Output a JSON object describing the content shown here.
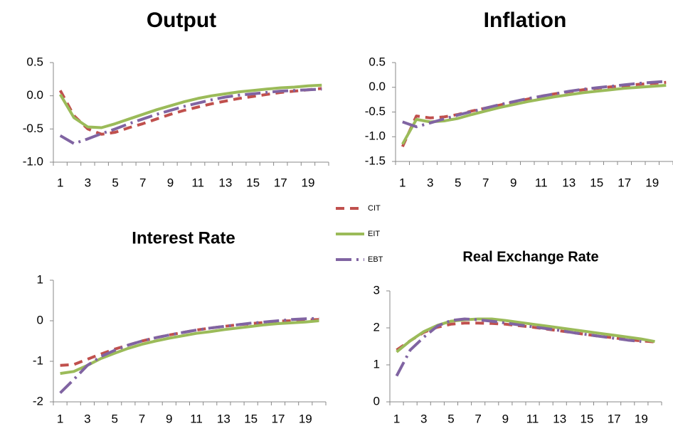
{
  "legend": [
    {
      "name": "CIT",
      "color": "#c0504d",
      "dash": "12,8"
    },
    {
      "name": "EIT",
      "color": "#9bbb59",
      "dash": "none"
    },
    {
      "name": "EBT",
      "color": "#8064a2",
      "dash": "22,7,3,7"
    }
  ],
  "chart_data": [
    {
      "type": "line",
      "title": "Output",
      "categories": [
        1,
        null,
        3,
        null,
        5,
        null,
        7,
        null,
        9,
        null,
        11,
        null,
        13,
        null,
        15,
        null,
        17,
        null,
        19,
        null
      ],
      "series": [
        {
          "values": [
            0.08,
            -0.3,
            -0.5,
            -0.58,
            -0.55,
            -0.48,
            -0.42,
            -0.35,
            -0.28,
            -0.22,
            -0.17,
            -0.12,
            -0.08,
            -0.04,
            -0.01,
            0.02,
            0.05,
            0.07,
            0.09,
            0.11
          ]
        },
        {
          "values": [
            0.02,
            -0.33,
            -0.47,
            -0.48,
            -0.42,
            -0.35,
            -0.28,
            -0.21,
            -0.15,
            -0.09,
            -0.04,
            0.0,
            0.03,
            0.06,
            0.08,
            0.1,
            0.12,
            0.13,
            0.15,
            0.16
          ]
        },
        {
          "values": [
            -0.6,
            -0.72,
            -0.65,
            -0.57,
            -0.5,
            -0.42,
            -0.35,
            -0.28,
            -0.22,
            -0.16,
            -0.11,
            -0.06,
            -0.02,
            0.01,
            0.03,
            0.05,
            0.07,
            0.08,
            0.09,
            0.1
          ]
        }
      ],
      "ylim": [
        -1.0,
        0.5
      ],
      "yticks": [
        0.5,
        {
          "value": 0,
          "label": "0.0"
        },
        -0.5,
        {
          "value": -1,
          "label": "-1.0"
        }
      ]
    },
    {
      "type": "line",
      "title": "Inflation",
      "categories": [
        1,
        null,
        3,
        null,
        5,
        null,
        7,
        null,
        9,
        null,
        11,
        null,
        13,
        null,
        15,
        null,
        17,
        null,
        19,
        null
      ],
      "series": [
        {
          "values": [
            -1.2,
            -0.58,
            -0.62,
            -0.6,
            -0.55,
            -0.48,
            -0.42,
            -0.36,
            -0.3,
            -0.24,
            -0.18,
            -0.13,
            -0.09,
            -0.05,
            -0.02,
            0.01,
            0.03,
            0.06,
            0.08,
            0.1
          ]
        },
        {
          "values": [
            -1.15,
            -0.65,
            -0.7,
            -0.68,
            -0.63,
            -0.55,
            -0.48,
            -0.41,
            -0.35,
            -0.29,
            -0.24,
            -0.19,
            -0.15,
            -0.11,
            -0.08,
            -0.05,
            -0.02,
            0.0,
            0.02,
            0.04
          ]
        },
        {
          "values": [
            -0.7,
            -0.8,
            -0.72,
            -0.64,
            -0.56,
            -0.49,
            -0.42,
            -0.35,
            -0.29,
            -0.23,
            -0.18,
            -0.13,
            -0.08,
            -0.04,
            -0.01,
            0.02,
            0.05,
            0.08,
            0.1,
            0.12
          ]
        }
      ],
      "ylim": [
        -1.5,
        0.5
      ],
      "yticks": [
        0.5,
        {
          "value": 0,
          "label": "0.0"
        },
        -0.5,
        {
          "value": -1,
          "label": "-1.0"
        },
        -1.5
      ]
    },
    {
      "type": "line",
      "title": "Interest Rate",
      "categories": [
        1,
        null,
        3,
        null,
        5,
        null,
        7,
        null,
        9,
        null,
        11,
        null,
        13,
        null,
        15,
        null,
        17,
        null,
        19,
        null
      ],
      "series": [
        {
          "values": [
            -1.1,
            -1.08,
            -0.95,
            -0.82,
            -0.7,
            -0.6,
            -0.5,
            -0.42,
            -0.35,
            -0.29,
            -0.23,
            -0.18,
            -0.14,
            -0.1,
            -0.07,
            -0.04,
            -0.01,
            0.0,
            0.02,
            0.03
          ]
        },
        {
          "values": [
            -1.3,
            -1.25,
            -1.1,
            -0.93,
            -0.8,
            -0.68,
            -0.58,
            -0.5,
            -0.43,
            -0.37,
            -0.31,
            -0.27,
            -0.22,
            -0.18,
            -0.14,
            -0.1,
            -0.07,
            -0.05,
            -0.03,
            0.0
          ]
        },
        {
          "values": [
            -1.78,
            -1.45,
            -1.1,
            -0.88,
            -0.73,
            -0.6,
            -0.5,
            -0.42,
            -0.35,
            -0.29,
            -0.23,
            -0.18,
            -0.14,
            -0.1,
            -0.06,
            -0.03,
            0.0,
            0.03,
            0.05,
            0.06
          ]
        }
      ],
      "ylim": [
        -2,
        1
      ],
      "yticks": [
        1,
        0,
        -1,
        -2
      ]
    },
    {
      "type": "line",
      "title": "Real Exchange Rate",
      "categories": [
        1,
        null,
        3,
        null,
        5,
        null,
        7,
        null,
        9,
        null,
        11,
        null,
        13,
        null,
        15,
        null,
        17,
        null,
        19,
        null
      ],
      "series": [
        {
          "values": [
            1.4,
            1.65,
            1.88,
            2.02,
            2.1,
            2.13,
            2.13,
            2.12,
            2.1,
            2.06,
            2.02,
            1.97,
            1.92,
            1.87,
            1.82,
            1.77,
            1.73,
            1.68,
            1.65,
            1.62
          ]
        },
        {
          "values": [
            1.35,
            1.65,
            1.9,
            2.07,
            2.18,
            2.22,
            2.24,
            2.24,
            2.2,
            2.15,
            2.1,
            2.05,
            2.0,
            1.95,
            1.9,
            1.85,
            1.8,
            1.75,
            1.7,
            1.63
          ]
        },
        {
          "values": [
            0.7,
            1.4,
            1.75,
            2.05,
            2.2,
            2.24,
            2.22,
            2.18,
            2.13,
            2.08,
            2.03,
            1.98,
            1.93,
            1.87,
            1.82,
            1.77,
            1.72,
            1.67,
            1.63,
            null
          ]
        }
      ],
      "ylim": [
        0,
        3
      ],
      "yticks": [
        3,
        2,
        1,
        0
      ]
    }
  ]
}
